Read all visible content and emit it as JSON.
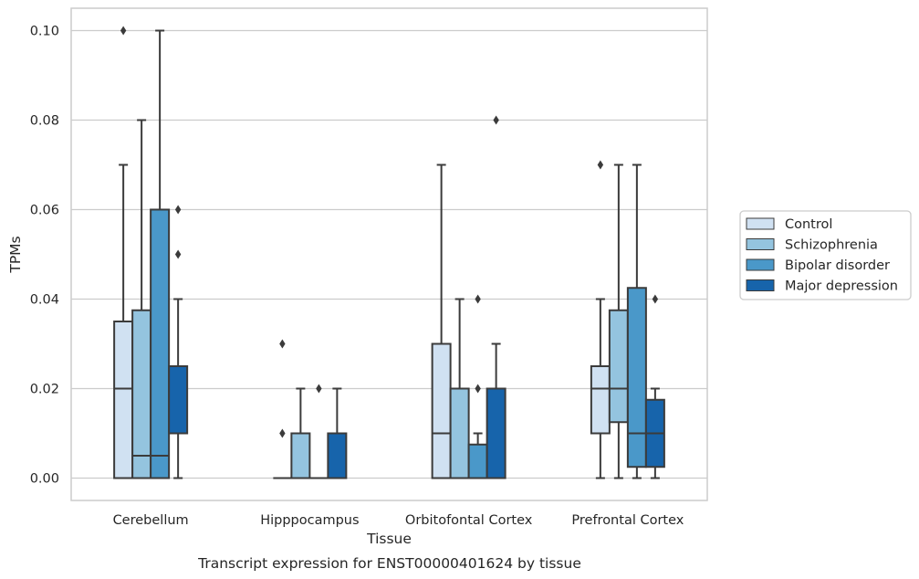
{
  "chart_data": {
    "type": "box",
    "xlabel": "Tissue",
    "ylabel": "TPMs",
    "caption": "Transcript expression for ENST00000401624 by tissue",
    "ylim": [
      -0.005,
      0.105
    ],
    "yticks": [
      "0.00",
      "0.02",
      "0.04",
      "0.06",
      "0.08",
      "0.10"
    ],
    "ytick_values": [
      0.0,
      0.02,
      0.04,
      0.06,
      0.08,
      0.1
    ],
    "grid": "horizontal",
    "legend_position": "right",
    "categories": [
      "Cerebellum",
      "Hipppocampus",
      "Orbitofontal Cortex",
      "Prefrontal Cortex"
    ],
    "series": [
      {
        "name": "Control",
        "color": "#d0e1f2",
        "boxes": [
          {
            "q1": 0.0,
            "median": 0.02,
            "q3": 0.035,
            "whislo": 0.0,
            "whishi": 0.07,
            "fliers": [
              0.1
            ]
          },
          {
            "q1": 0.0,
            "median": 0.0,
            "q3": 0.0,
            "whislo": 0.0,
            "whishi": 0.0,
            "fliers": [
              0.01,
              0.03
            ]
          },
          {
            "q1": 0.0,
            "median": 0.01,
            "q3": 0.03,
            "whislo": 0.0,
            "whishi": 0.07,
            "fliers": []
          },
          {
            "q1": 0.01,
            "median": 0.02,
            "q3": 0.025,
            "whislo": 0.0,
            "whishi": 0.04,
            "fliers": [
              0.07
            ]
          }
        ]
      },
      {
        "name": "Schizophrenia",
        "color": "#94c4df",
        "boxes": [
          {
            "q1": 0.0,
            "median": 0.005,
            "q3": 0.0375,
            "whislo": 0.0,
            "whishi": 0.08,
            "fliers": []
          },
          {
            "q1": 0.0,
            "median": 0.0,
            "q3": 0.01,
            "whislo": 0.0,
            "whishi": 0.02,
            "fliers": []
          },
          {
            "q1": 0.0,
            "median": 0.0,
            "q3": 0.02,
            "whislo": 0.0,
            "whishi": 0.04,
            "fliers": []
          },
          {
            "q1": 0.0125,
            "median": 0.02,
            "q3": 0.0375,
            "whislo": 0.0,
            "whishi": 0.07,
            "fliers": []
          }
        ]
      },
      {
        "name": "Bipolar disorder",
        "color": "#4a98c9",
        "boxes": [
          {
            "q1": 0.0,
            "median": 0.005,
            "q3": 0.06,
            "whislo": 0.0,
            "whishi": 0.1,
            "fliers": []
          },
          {
            "q1": 0.0,
            "median": 0.0,
            "q3": 0.0,
            "whislo": 0.0,
            "whishi": 0.0,
            "fliers": [
              0.02
            ]
          },
          {
            "q1": 0.0,
            "median": 0.0,
            "q3": 0.0075,
            "whislo": 0.0,
            "whishi": 0.01,
            "fliers": [
              0.02,
              0.04
            ]
          },
          {
            "q1": 0.0025,
            "median": 0.01,
            "q3": 0.0425,
            "whislo": 0.0,
            "whishi": 0.07,
            "fliers": []
          }
        ]
      },
      {
        "name": "Major depression",
        "color": "#1764ab",
        "boxes": [
          {
            "q1": 0.01,
            "median": 0.01,
            "q3": 0.025,
            "whislo": 0.0,
            "whishi": 0.04,
            "fliers": [
              0.05,
              0.06
            ]
          },
          {
            "q1": 0.0,
            "median": 0.0,
            "q3": 0.01,
            "whislo": 0.0,
            "whishi": 0.02,
            "fliers": []
          },
          {
            "q1": 0.0,
            "median": 0.0,
            "q3": 0.02,
            "whislo": 0.0,
            "whishi": 0.03,
            "fliers": [
              0.08
            ]
          },
          {
            "q1": 0.0025,
            "median": 0.01,
            "q3": 0.0175,
            "whislo": 0.0,
            "whishi": 0.02,
            "fliers": [
              0.04
            ]
          }
        ]
      }
    ]
  }
}
